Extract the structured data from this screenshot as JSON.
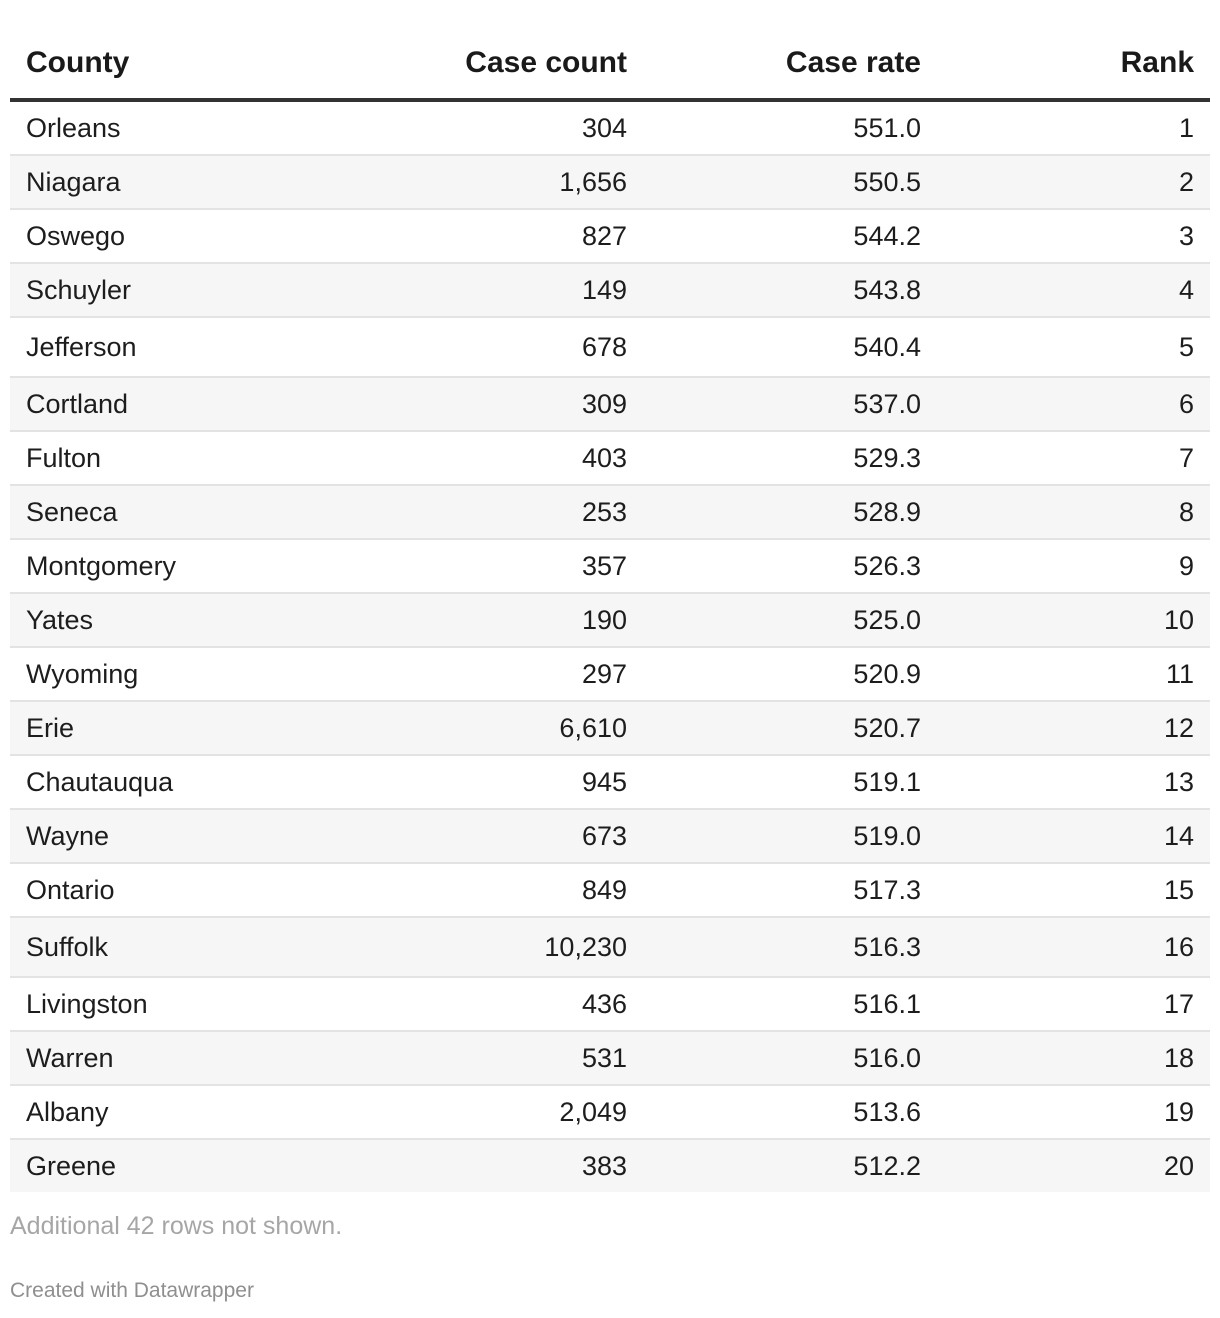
{
  "chart_data": {
    "type": "table",
    "columns": [
      "County",
      "Case count",
      "Case rate",
      "Rank"
    ],
    "rows": [
      {
        "county": "Orleans",
        "case_count": "304",
        "case_rate": "551.0",
        "rank": "1"
      },
      {
        "county": "Niagara",
        "case_count": "1,656",
        "case_rate": "550.5",
        "rank": "2"
      },
      {
        "county": "Oswego",
        "case_count": "827",
        "case_rate": "544.2",
        "rank": "3"
      },
      {
        "county": "Schuyler",
        "case_count": "149",
        "case_rate": "543.8",
        "rank": "4"
      },
      {
        "county": "Jefferson",
        "case_count": "678",
        "case_rate": "540.4",
        "rank": "5"
      },
      {
        "county": "Cortland",
        "case_count": "309",
        "case_rate": "537.0",
        "rank": "6"
      },
      {
        "county": "Fulton",
        "case_count": "403",
        "case_rate": "529.3",
        "rank": "7"
      },
      {
        "county": "Seneca",
        "case_count": "253",
        "case_rate": "528.9",
        "rank": "8"
      },
      {
        "county": "Montgomery",
        "case_count": "357",
        "case_rate": "526.3",
        "rank": "9"
      },
      {
        "county": "Yates",
        "case_count": "190",
        "case_rate": "525.0",
        "rank": "10"
      },
      {
        "county": "Wyoming",
        "case_count": "297",
        "case_rate": "520.9",
        "rank": "11"
      },
      {
        "county": "Erie",
        "case_count": "6,610",
        "case_rate": "520.7",
        "rank": "12"
      },
      {
        "county": "Chautauqua",
        "case_count": "945",
        "case_rate": "519.1",
        "rank": "13"
      },
      {
        "county": "Wayne",
        "case_count": "673",
        "case_rate": "519.0",
        "rank": "14"
      },
      {
        "county": "Ontario",
        "case_count": "849",
        "case_rate": "517.3",
        "rank": "15"
      },
      {
        "county": "Suffolk",
        "case_count": "10,230",
        "case_rate": "516.3",
        "rank": "16"
      },
      {
        "county": "Livingston",
        "case_count": "436",
        "case_rate": "516.1",
        "rank": "17"
      },
      {
        "county": "Warren",
        "case_count": "531",
        "case_rate": "516.0",
        "rank": "18"
      },
      {
        "county": "Albany",
        "case_count": "2,049",
        "case_rate": "513.6",
        "rank": "19"
      },
      {
        "county": "Greene",
        "case_count": "383",
        "case_rate": "512.2",
        "rank": "20"
      }
    ]
  },
  "footer": {
    "note": "Additional 42 rows not shown.",
    "credit": "Created with Datawrapper"
  }
}
